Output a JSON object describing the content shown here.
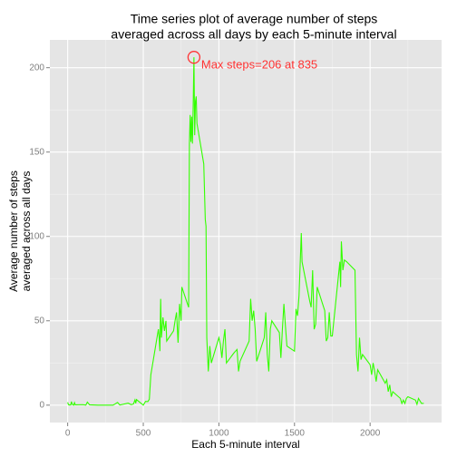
{
  "chart_data": {
    "type": "line",
    "title": [
      "Time series plot of average number of steps",
      "averaged across all days by each 5-minute interval"
    ],
    "xlabel": "Each 5-minute interval",
    "ylabel": [
      "Average number of steps",
      "averaged across all days"
    ],
    "x": [
      0,
      5,
      10,
      15,
      20,
      25,
      30,
      40,
      45,
      50,
      100,
      120,
      130,
      145,
      200,
      230,
      300,
      330,
      345,
      400,
      420,
      435,
      445,
      450,
      455,
      500,
      515,
      530,
      540,
      550,
      600,
      605,
      610,
      615,
      620,
      630,
      640,
      650,
      655,
      700,
      710,
      720,
      730,
      740,
      750,
      755,
      800,
      805,
      810,
      815,
      820,
      825,
      830,
      835,
      840,
      845,
      850,
      855,
      900,
      910,
      915,
      920,
      930,
      940,
      950,
      1000,
      1010,
      1020,
      1030,
      1040,
      1050,
      1100,
      1120,
      1130,
      1140,
      1200,
      1210,
      1220,
      1230,
      1240,
      1250,
      1300,
      1310,
      1320,
      1330,
      1340,
      1350,
      1400,
      1410,
      1420,
      1430,
      1440,
      1450,
      1500,
      1510,
      1520,
      1530,
      1545,
      1550,
      1600,
      1610,
      1620,
      1630,
      1640,
      1650,
      1700,
      1710,
      1720,
      1730,
      1740,
      1750,
      1800,
      1805,
      1810,
      1820,
      1830,
      1845,
      1900,
      1910,
      1920,
      1930,
      1940,
      1950,
      2000,
      2010,
      2020,
      2030,
      2040,
      2050,
      2100,
      2110,
      2120,
      2130,
      2140,
      2150,
      2200,
      2210,
      2220,
      2230,
      2240,
      2250,
      2300,
      2310,
      2320,
      2330,
      2340,
      2355
    ],
    "series": [
      {
        "name": "steps",
        "color": "#33ff00",
        "values": [
          1.7,
          0.3,
          0.1,
          0.2,
          0.1,
          2.1,
          0.5,
          0,
          1.5,
          0.2,
          0.3,
          0,
          1.8,
          0.2,
          0,
          0,
          0,
          1.6,
          0.1,
          1.2,
          0.3,
          0.7,
          3.1,
          1.1,
          3.3,
          0,
          2.2,
          2.1,
          3.5,
          18,
          45,
          40,
          32,
          63,
          40,
          52,
          44,
          50,
          38,
          44,
          50,
          55,
          37,
          60,
          50,
          70,
          58,
          155,
          172,
          156,
          171,
          155,
          177,
          206.17,
          160,
          180,
          183,
          167,
          143,
          110,
          106,
          40,
          20,
          35,
          25,
          40,
          36,
          28,
          38,
          45,
          25,
          31,
          33,
          20,
          26,
          38,
          63,
          50,
          56,
          45,
          26,
          40,
          55,
          30,
          20,
          45,
          50,
          43,
          28,
          45,
          60,
          47,
          35,
          32,
          57,
          53,
          65,
          102,
          85,
          62,
          58,
          80,
          45,
          48,
          70,
          56,
          38,
          40,
          55,
          41,
          41,
          85,
          70,
          97,
          80,
          86,
          85,
          80,
          30,
          20,
          40,
          27,
          30,
          24,
          18,
          25,
          20,
          14,
          21,
          13,
          15,
          8,
          12,
          5,
          8,
          4,
          1,
          3,
          1,
          4,
          5,
          3,
          0.5,
          4,
          2.5,
          1,
          1.1
        ]
      }
    ],
    "annotation": {
      "text": "Max steps=206 at 835",
      "x": 835,
      "y": 206.17,
      "color": "#ff3333"
    },
    "xlim": [
      -117.75,
      2472.75
    ],
    "xticks": [
      0,
      500,
      1000,
      1500,
      2000
    ],
    "ylim": [
      -10.31,
      216.48
    ],
    "yticks": [
      0,
      50,
      100,
      150,
      200
    ],
    "grid": true
  }
}
